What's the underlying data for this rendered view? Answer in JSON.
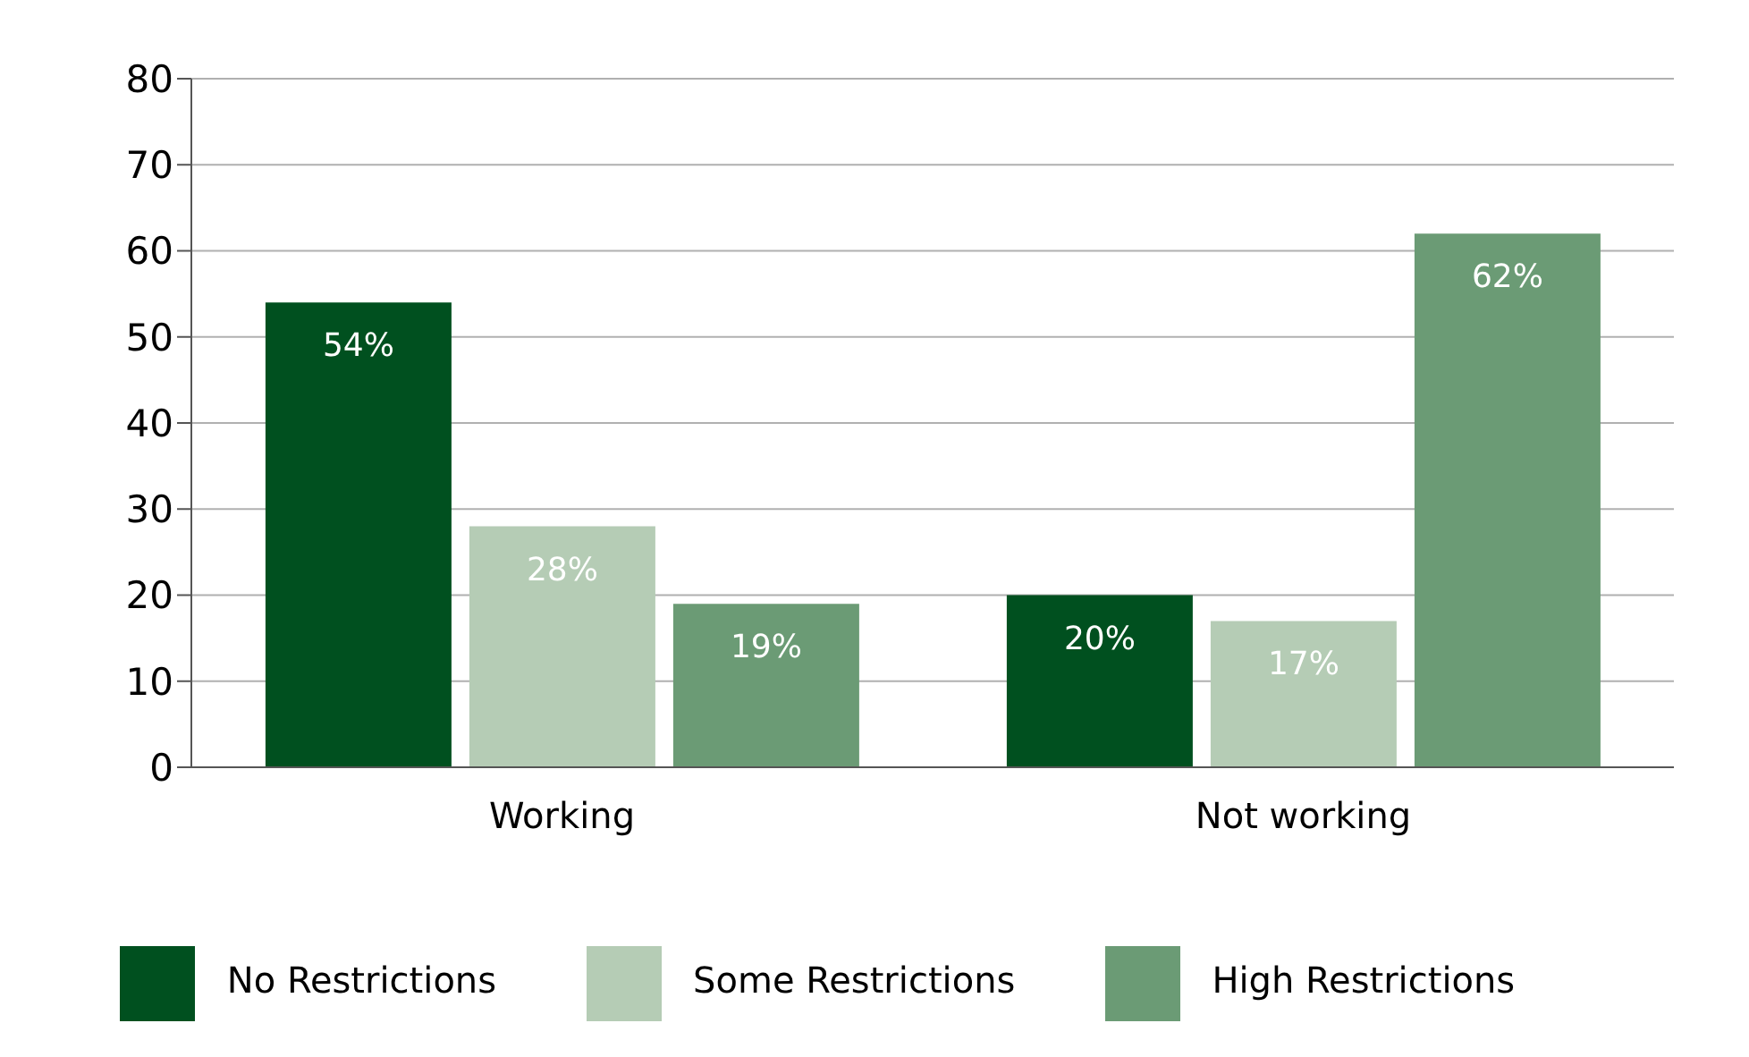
{
  "chart_data": {
    "type": "bar",
    "categories": [
      "Working",
      "Not working"
    ],
    "series": [
      {
        "name": "No Restrictions",
        "color": "#00501f",
        "values": [
          54,
          20
        ],
        "value_labels": [
          "54%",
          "20%"
        ]
      },
      {
        "name": "Some Restrictions",
        "color": "#b5ccb5",
        "values": [
          28,
          17
        ],
        "value_labels": [
          "28%",
          "17%"
        ]
      },
      {
        "name": "High Restrictions",
        "color": "#6b9b75",
        "values": [
          19,
          62
        ],
        "value_labels": [
          "19%",
          "62%"
        ]
      }
    ],
    "ylim": [
      0,
      80
    ],
    "yticks": [
      0,
      10,
      20,
      30,
      40,
      50,
      60,
      70,
      80
    ],
    "grid": "y",
    "legend": "bottom"
  }
}
